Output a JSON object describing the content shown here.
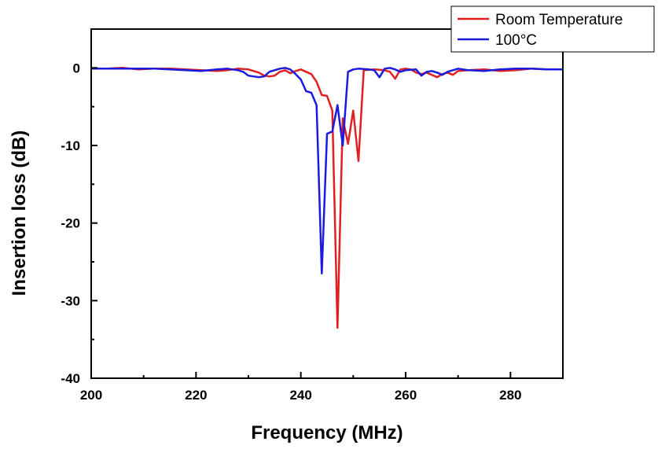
{
  "chart_data": {
    "type": "line",
    "title": "",
    "xlabel": "Frequency (MHz)",
    "ylabel": "Insertion loss (dB)",
    "xlim": [
      200,
      290
    ],
    "ylim": [
      -40,
      5
    ],
    "x_ticks": [
      200,
      220,
      240,
      260,
      280
    ],
    "y_ticks": [
      0,
      -10,
      -20,
      -30,
      -40
    ],
    "grid": false,
    "legend_position": "top-right",
    "series": [
      {
        "name": "Room Temperature",
        "color": "#e02020",
        "x": [
          200,
          203,
          206,
          209,
          212,
          215,
          218,
          221,
          224,
          226,
          228,
          230,
          232,
          233,
          234,
          235,
          236,
          237,
          238,
          239,
          240,
          241,
          242,
          243,
          244,
          245,
          246,
          247,
          248,
          249,
          250,
          251,
          252,
          254,
          256,
          257,
          258,
          259,
          260,
          261,
          262,
          263,
          264,
          265,
          266,
          267,
          268,
          269,
          270,
          272,
          275,
          278,
          281,
          284,
          287,
          290
        ],
        "y": [
          -0.1,
          -0.1,
          0,
          -0.2,
          -0.1,
          -0.1,
          -0.2,
          -0.3,
          -0.4,
          -0.3,
          -0.1,
          -0.2,
          -0.6,
          -1.0,
          -1.1,
          -1.0,
          -0.5,
          -0.3,
          -0.7,
          -0.4,
          -0.2,
          -0.5,
          -0.8,
          -1.8,
          -3.5,
          -3.6,
          -5.5,
          -33.5,
          -6.5,
          -9.8,
          -5.5,
          -12.0,
          -0.3,
          -0.2,
          -0.3,
          -0.5,
          -1.4,
          -0.2,
          -0.1,
          -0.2,
          -0.6,
          -0.8,
          -0.6,
          -0.9,
          -1.2,
          -0.8,
          -0.6,
          -0.9,
          -0.4,
          -0.3,
          -0.2,
          -0.4,
          -0.3,
          -0.1,
          -0.2,
          -0.2
        ]
      },
      {
        "name": "100°C",
        "color": "#1a1ae0",
        "x": [
          200,
          203,
          206,
          209,
          212,
          215,
          218,
          221,
          224,
          226,
          228,
          229,
          230,
          232,
          233,
          234,
          235,
          236,
          237,
          238,
          239,
          240,
          241,
          242,
          243,
          244,
          245,
          246,
          247,
          248,
          249,
          250,
          251,
          253,
          254,
          255,
          256,
          257,
          258,
          259,
          260,
          262,
          263,
          264,
          265,
          266,
          267,
          268,
          270,
          272,
          275,
          278,
          281,
          284,
          287,
          290
        ],
        "y": [
          -0.1,
          -0.1,
          -0.1,
          -0.1,
          -0.1,
          -0.2,
          -0.3,
          -0.4,
          -0.2,
          -0.1,
          -0.3,
          -0.5,
          -1.0,
          -1.2,
          -1.1,
          -0.5,
          -0.3,
          -0.1,
          0,
          -0.2,
          -0.8,
          -1.5,
          -3.0,
          -3.2,
          -4.8,
          -26.5,
          -8.5,
          -8.2,
          -4.8,
          -10.0,
          -0.5,
          -0.2,
          -0.1,
          -0.2,
          -0.3,
          -1.2,
          -0.1,
          0,
          -0.2,
          -0.5,
          -0.3,
          -0.2,
          -1.0,
          -0.5,
          -0.4,
          -0.6,
          -0.9,
          -0.5,
          -0.1,
          -0.3,
          -0.4,
          -0.2,
          -0.1,
          -0.1,
          -0.2,
          -0.2
        ]
      }
    ]
  }
}
